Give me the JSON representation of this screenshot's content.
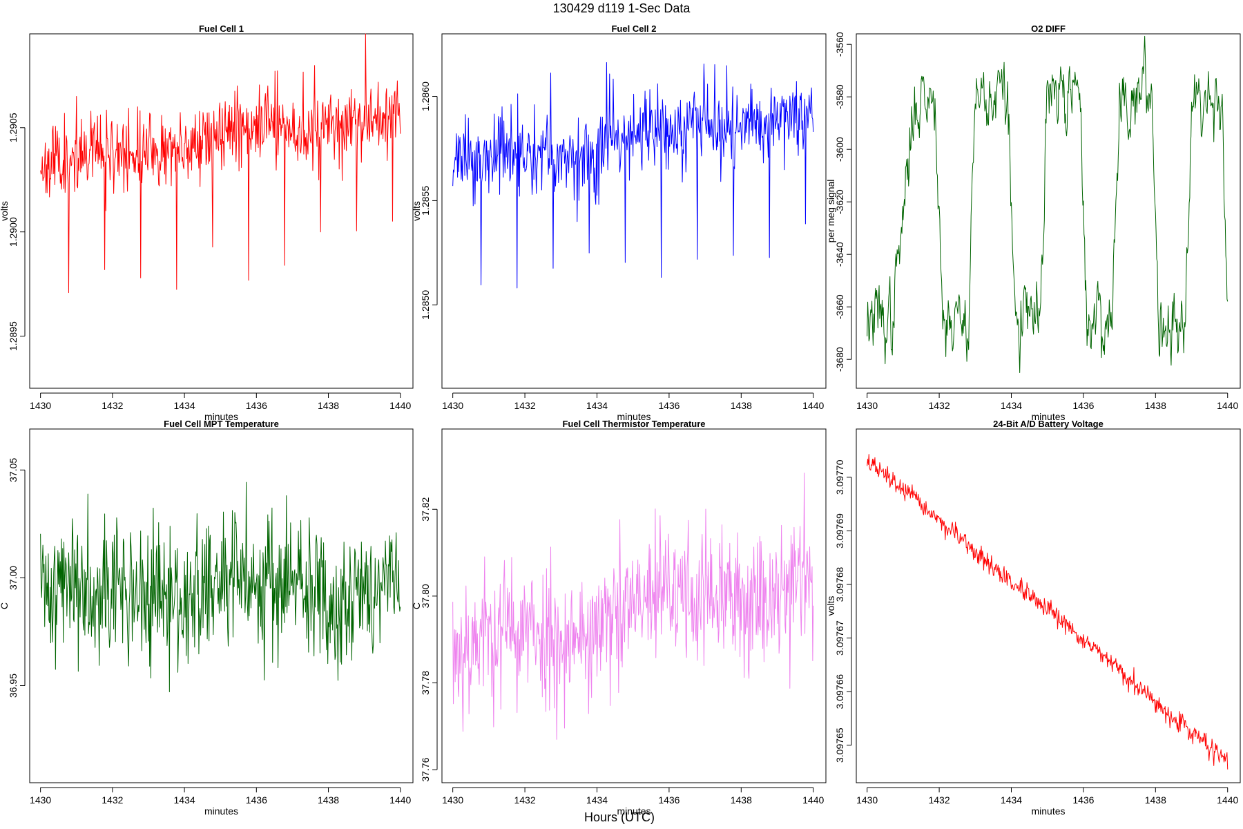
{
  "figure": {
    "title": "130429   d119   1-Sec Data",
    "outer_xlabel": "Hours (UTC)"
  },
  "chart_data": [
    {
      "type": "line",
      "title": "Fuel Cell 1",
      "xlabel": "minutes",
      "ylabel": "volts",
      "color": "#ff0000",
      "xlim": [
        1429.7,
        1440.35
      ],
      "ylim": [
        1.28925,
        1.29095
      ],
      "xticks": [
        1430,
        1432,
        1434,
        1436,
        1438,
        1440
      ],
      "yticks": [
        1.2895,
        1.29,
        1.2905
      ],
      "ytick_labels": [
        "1.2895",
        "1.2900",
        "1.2905"
      ],
      "series_gen": {
        "start": 1.29032,
        "end": 1.29058,
        "noise": 0.00012,
        "spike_depth": 0.00068,
        "spike_period_min": 1.0,
        "spike_offset_min": 0.78,
        "seed": 11
      }
    },
    {
      "type": "line",
      "title": "Fuel Cell 2",
      "xlabel": "minutes",
      "ylabel": "volts",
      "color": "#0000ff",
      "xlim": [
        1429.7,
        1440.35
      ],
      "ylim": [
        1.2846,
        1.2863
      ],
      "xticks": [
        1430,
        1432,
        1434,
        1436,
        1438,
        1440
      ],
      "yticks": [
        1.285,
        1.2855,
        1.286
      ],
      "ytick_labels": [
        "1.2850",
        "1.2855",
        "1.2860"
      ],
      "series_gen": {
        "start": 1.28567,
        "end": 1.28592,
        "noise": 0.00012,
        "spike_depth": 0.00068,
        "spike_period_min": 1.0,
        "spike_offset_min": 0.78,
        "seed": 23
      }
    },
    {
      "type": "line",
      "title": "O2 DIFF",
      "xlabel": "minutes",
      "ylabel": "per meg signal",
      "color": "#006400",
      "xlim": [
        1429.7,
        1440.35
      ],
      "ylim": [
        -3691,
        -3556
      ],
      "xticks": [
        1430,
        1432,
        1434,
        1436,
        1438,
        1440
      ],
      "yticks": [
        -3680,
        -3660,
        -3640,
        -3620,
        -3600,
        -3580,
        -3560
      ],
      "ytick_labels": [
        "-3680",
        "-3660",
        "-3640",
        "-3620",
        "-3600",
        "-3580",
        "-3560"
      ],
      "series_gen": {
        "low": -3665,
        "high": -3580,
        "noise": 7,
        "transitions": [
          [
            1430.7,
            1431.35,
            "up"
          ],
          [
            1431.9,
            1432.1,
            "down"
          ],
          [
            1432.8,
            1433.0,
            "up"
          ],
          [
            1433.9,
            1434.1,
            "down"
          ],
          [
            1434.8,
            1435.0,
            "up"
          ],
          [
            1435.9,
            1436.1,
            "down"
          ],
          [
            1436.8,
            1437.0,
            "up"
          ],
          [
            1437.9,
            1438.1,
            "down"
          ],
          [
            1438.8,
            1439.0,
            "up"
          ],
          [
            1439.85,
            1440.0,
            "down"
          ]
        ],
        "seed": 37
      }
    },
    {
      "type": "line",
      "title": "Fuel Cell MPT Temperature",
      "xlabel": "minutes",
      "ylabel": "C",
      "color": "#006400",
      "xlim": [
        1429.7,
        1440.35
      ],
      "ylim": [
        36.905,
        37.069
      ],
      "xticks": [
        1430,
        1432,
        1434,
        1436,
        1438,
        1440
      ],
      "yticks": [
        36.95,
        37.0,
        37.05
      ],
      "ytick_labels": [
        "36.95",
        "37.00",
        "37.05"
      ],
      "series_gen": {
        "start": 36.993,
        "end": 36.996,
        "noise": 0.022,
        "seed": 41
      }
    },
    {
      "type": "line",
      "title": "Fuel Cell Thermistor Temperature",
      "xlabel": "minutes",
      "ylabel": "C",
      "color": "#ee82ee",
      "xlim": [
        1429.7,
        1440.35
      ],
      "ylim": [
        37.757,
        37.8385
      ],
      "xticks": [
        1430,
        1432,
        1434,
        1436,
        1438,
        1440
      ],
      "yticks": [
        37.76,
        37.78,
        37.8,
        37.82
      ],
      "ytick_labels": [
        "37.76",
        "37.78",
        "37.80",
        "37.82"
      ],
      "series_gen": {
        "start": 37.787,
        "end": 37.805,
        "noise": 0.011,
        "seed": 53
      }
    },
    {
      "type": "line",
      "title": "24-Bit A/D Battery Voltage",
      "xlabel": "minutes",
      "ylabel": "volts",
      "color": "#ff0000",
      "xlim": [
        1429.7,
        1440.35
      ],
      "ylim": [
        3.097643,
        3.097709
      ],
      "xticks": [
        1430,
        1432,
        1434,
        1436,
        1438,
        1440
      ],
      "yticks": [
        3.09765,
        3.09766,
        3.09767,
        3.09768,
        3.09769,
        3.0977
      ],
      "ytick_labels": [
        "3.09765",
        "3.09766",
        "3.09767",
        "3.09768",
        "3.09769",
        "3.09770"
      ],
      "series_gen": {
        "start": 3.097703,
        "end": 3.097647,
        "noise": 1.2e-06,
        "seed": 67
      }
    }
  ]
}
